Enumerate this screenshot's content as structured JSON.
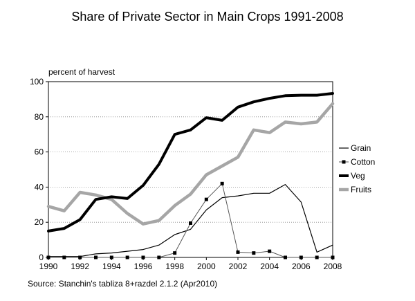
{
  "chart_data": {
    "type": "line",
    "title": "Share of Private Sector in Main Crops 1991-2008",
    "ylabel": "percent of harvest",
    "xlabel": "",
    "xlim": [
      1990,
      2008
    ],
    "ylim": [
      0,
      100
    ],
    "x_ticks": [
      1990,
      1992,
      1994,
      1996,
      1998,
      2000,
      2002,
      2004,
      2006,
      2008
    ],
    "y_ticks": [
      0,
      20,
      40,
      60,
      80,
      100
    ],
    "grid": "horizontal dotted",
    "legend_position": "right",
    "source": "Source: Stanchin's tabliza 8+razdel 2.1.2 (Apr2010)",
    "series": [
      {
        "name": "Grain",
        "color": "#000000",
        "style": "thin",
        "x": [
          1990,
          1991,
          1992,
          1993,
          1994,
          1995,
          1996,
          1997,
          1998,
          1999,
          2000,
          2001,
          2002,
          2003,
          2004,
          2005,
          2006,
          2007,
          2008
        ],
        "values": [
          0.5,
          0.5,
          0.5,
          2,
          2.5,
          3.5,
          4.5,
          7,
          13,
          16,
          27,
          34,
          35,
          36.5,
          36.5,
          41.5,
          31.5,
          3,
          7
        ]
      },
      {
        "name": "Cotton",
        "color": "#555555",
        "style": "marker",
        "x": [
          1990,
          1991,
          1992,
          1993,
          1994,
          1995,
          1996,
          1997,
          1998,
          1999,
          2000,
          2001,
          2002,
          2003,
          2004,
          2005,
          2006,
          2007,
          2008
        ],
        "values": [
          0,
          0,
          0,
          0,
          0,
          0,
          0,
          0,
          2.5,
          19.5,
          33,
          42,
          3,
          2.5,
          3.5,
          0,
          0,
          0,
          0
        ]
      },
      {
        "name": "Veg",
        "color": "#000000",
        "style": "thick",
        "x": [
          1990,
          1991,
          1992,
          1993,
          1994,
          1995,
          1996,
          1997,
          1998,
          1999,
          2000,
          2001,
          2002,
          2003,
          2004,
          2005,
          2006,
          2007,
          2008
        ],
        "values": [
          15,
          16.5,
          21.5,
          33,
          34.5,
          33.5,
          41,
          53,
          70,
          72.5,
          79.5,
          78,
          85.5,
          88.5,
          90.5,
          92,
          92.3,
          92.3,
          93.3
        ]
      },
      {
        "name": "Fruits",
        "color": "#a6a6a6",
        "style": "thick",
        "x": [
          1990,
          1991,
          1992,
          1993,
          1994,
          1995,
          1996,
          1997,
          1998,
          1999,
          2000,
          2001,
          2002,
          2003,
          2004,
          2005,
          2006,
          2007,
          2008
        ],
        "values": [
          29,
          26.5,
          37,
          35.5,
          33,
          25,
          19,
          21,
          29.5,
          36,
          47,
          52,
          57,
          72.5,
          71,
          77,
          76,
          77,
          87.5
        ]
      }
    ]
  }
}
